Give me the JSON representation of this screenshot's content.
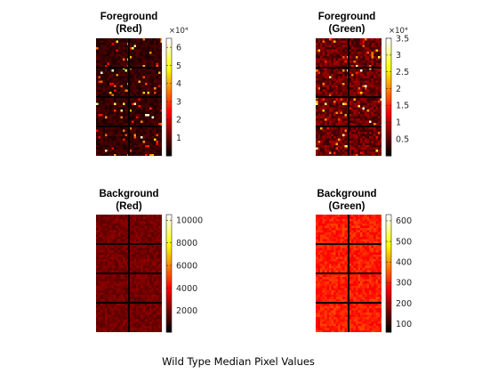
{
  "figure_caption": "Wild Type Median Pixel Values",
  "chart_data": [
    {
      "type": "heatmap",
      "title": [
        "Foreground",
        "(Red)"
      ],
      "colormap": "hot",
      "colorbar": {
        "range": [
          0,
          65000
        ],
        "ticks": [
          1,
          2,
          3,
          4,
          5,
          6
        ],
        "tick_labels": [
          "1",
          "2",
          "3",
          "4",
          "5",
          "6"
        ],
        "multiplier": "×10⁴",
        "multiplier_value": 10000
      },
      "grid": {
        "block_rows": 4,
        "block_cols": 2
      },
      "pattern": "sparse-bright-spots",
      "background_level": 0.1,
      "seed": 11
    },
    {
      "type": "heatmap",
      "title": [
        "Foreground",
        "(Green)"
      ],
      "colormap": "hot",
      "colorbar": {
        "range": [
          0,
          35000
        ],
        "ticks": [
          0.5,
          1,
          1.5,
          2,
          2.5,
          3,
          3.5
        ],
        "tick_labels": [
          "0.5",
          "1",
          "1.5",
          "2",
          "2.5",
          "3",
          "3.5"
        ],
        "multiplier": "×10⁴",
        "multiplier_value": 10000
      },
      "grid": {
        "block_rows": 4,
        "block_cols": 2
      },
      "pattern": "sparse-bright-spots",
      "background_level": 0.2,
      "seed": 23
    },
    {
      "type": "heatmap",
      "title": [
        "Background",
        "(Red)"
      ],
      "colormap": "hot",
      "colorbar": {
        "range": [
          100,
          10500
        ],
        "ticks": [
          2000,
          4000,
          6000,
          8000,
          10000
        ],
        "tick_labels": [
          "2000",
          "4000",
          "6000",
          "8000",
          "10000"
        ],
        "multiplier": "",
        "multiplier_value": 1
      },
      "grid": {
        "block_rows": 4,
        "block_cols": 2
      },
      "pattern": "dark-uniform",
      "background_level": 0.18,
      "seed": 37
    },
    {
      "type": "heatmap",
      "title": [
        "Background",
        "(Green)"
      ],
      "colormap": "hot",
      "colorbar": {
        "range": [
          60,
          630
        ],
        "ticks": [
          100,
          200,
          300,
          400,
          500,
          600
        ],
        "tick_labels": [
          "100",
          "200",
          "300",
          "400",
          "500",
          "600"
        ],
        "multiplier": "",
        "multiplier_value": 1
      },
      "grid": {
        "block_rows": 4,
        "block_cols": 2
      },
      "pattern": "bright-uniform",
      "background_level": 0.43,
      "seed": 53
    }
  ]
}
